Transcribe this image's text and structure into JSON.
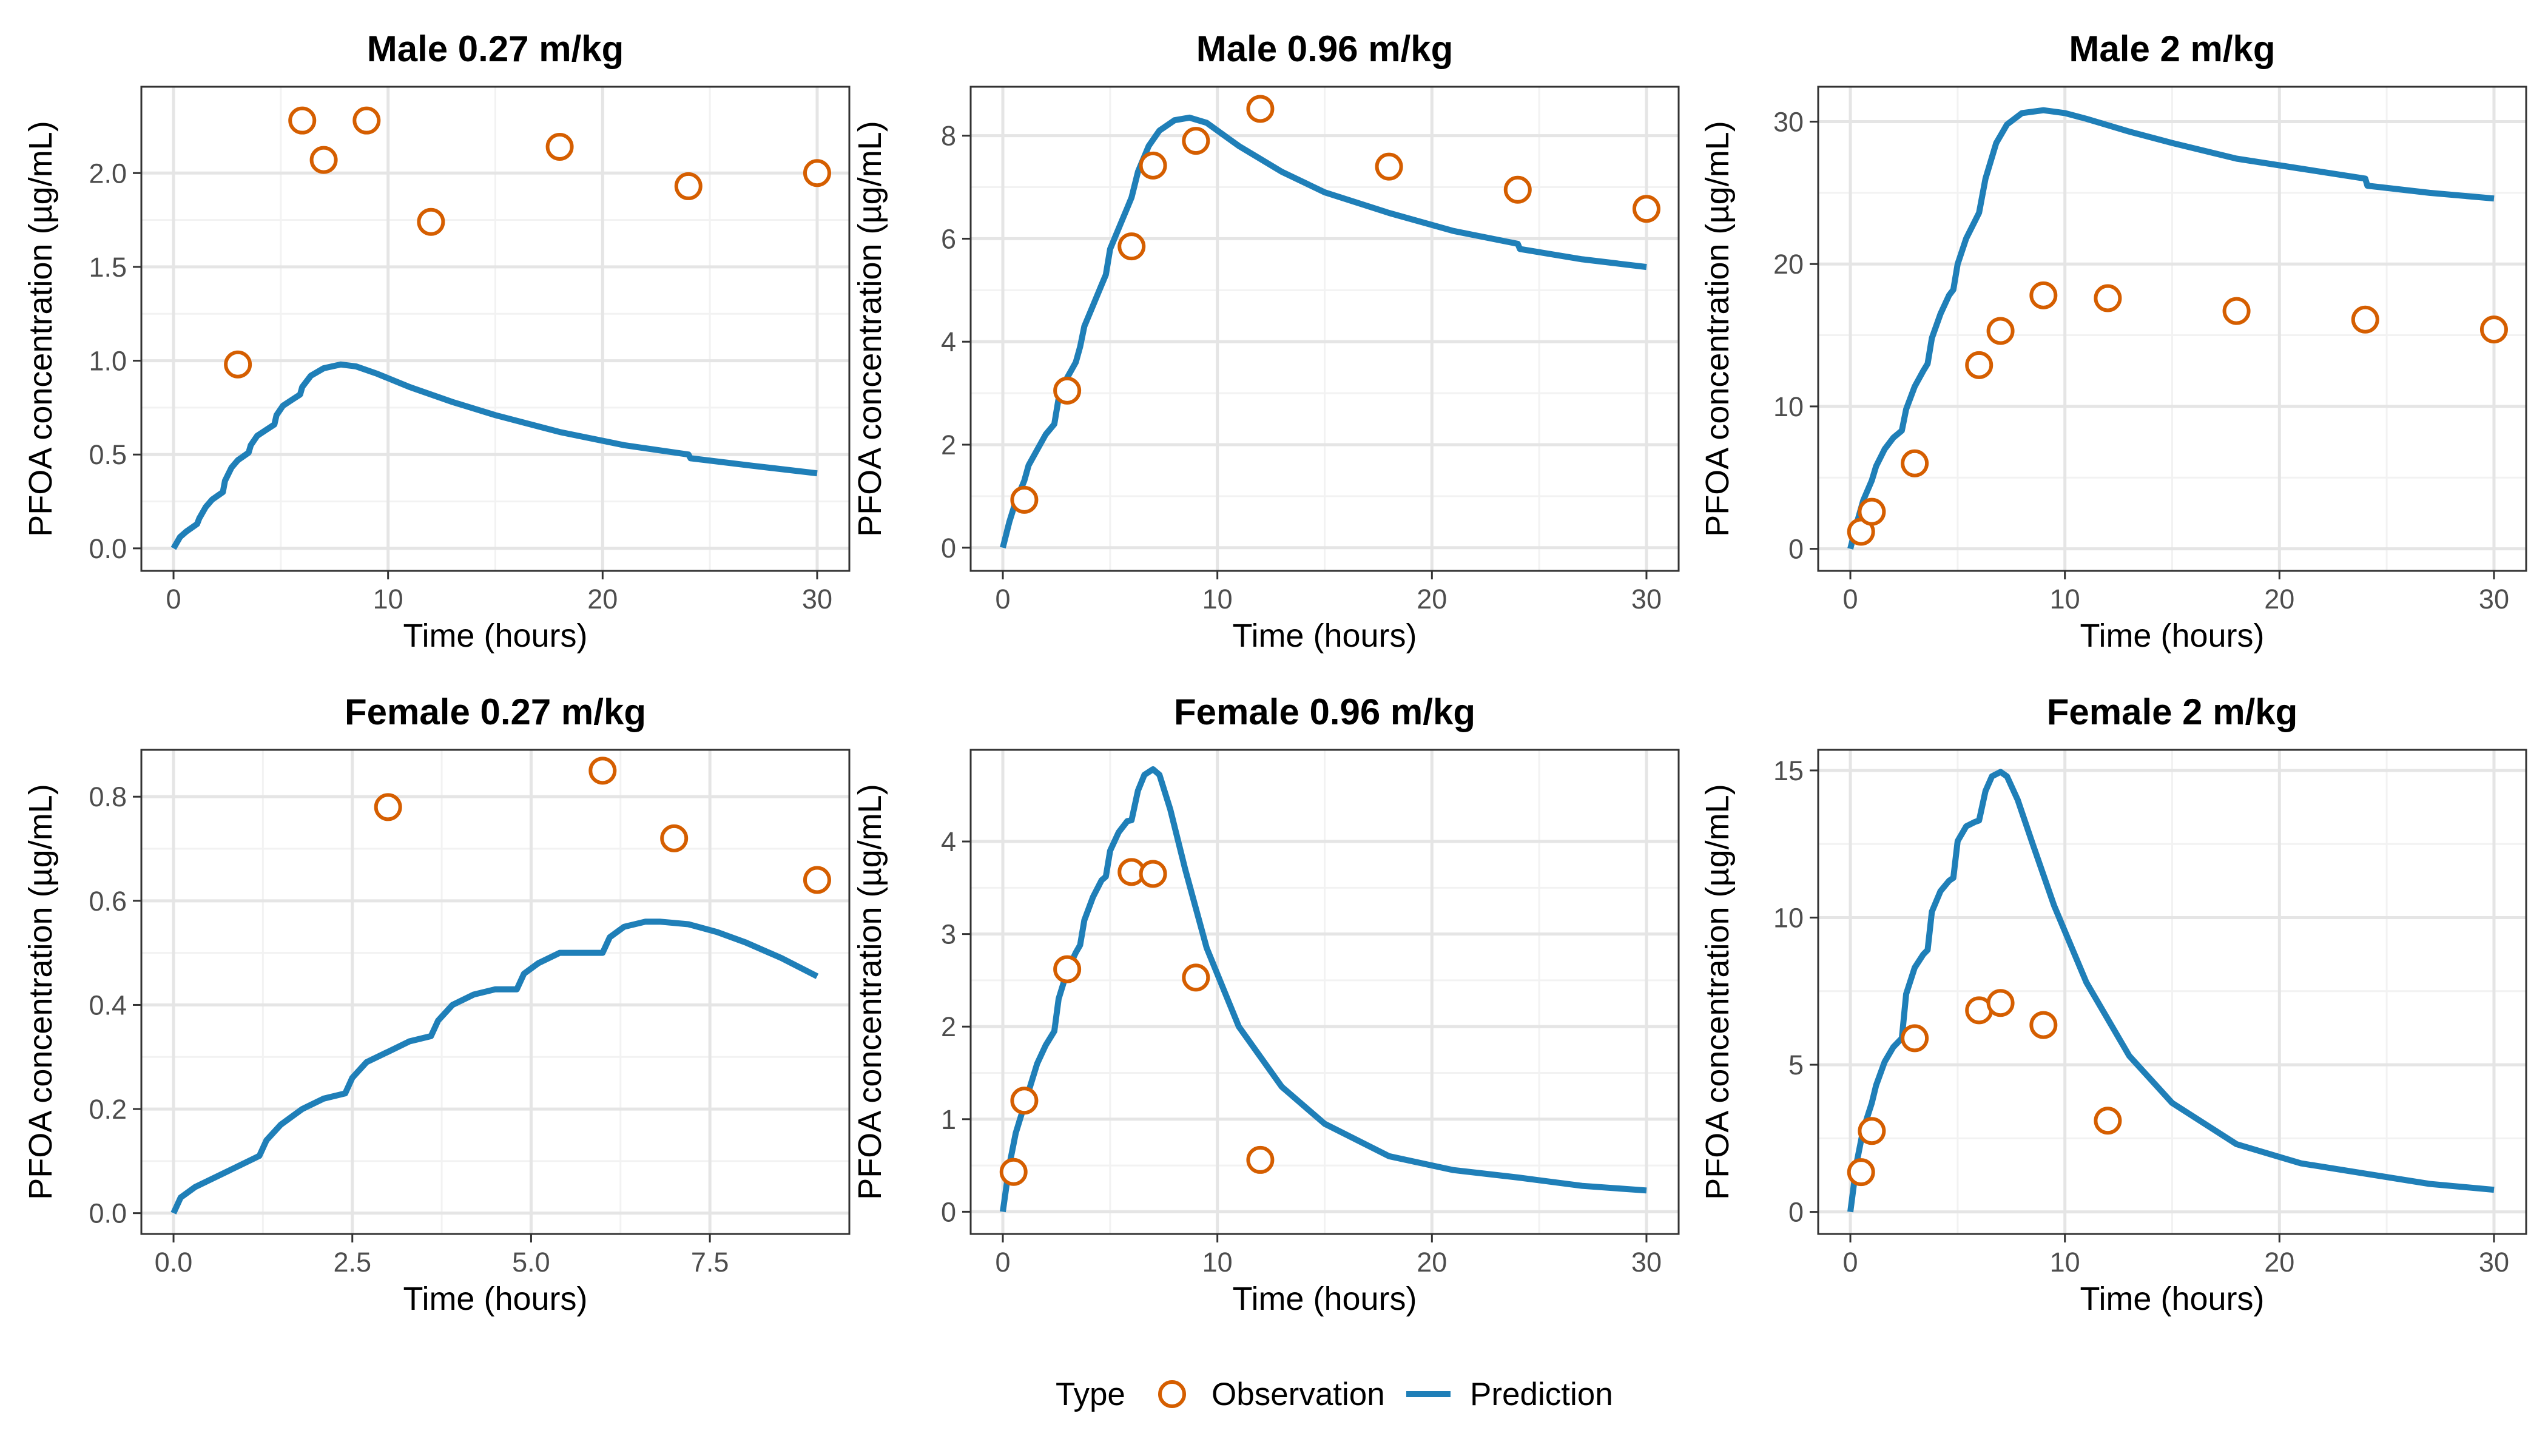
{
  "legend": {
    "title": "Type",
    "observation_label": "Observation",
    "prediction_label": "Prediction"
  },
  "colors": {
    "observation": "#D55E00",
    "prediction": "#1F7FB8",
    "grid": "#E5E5E5",
    "frame": "#333333"
  },
  "chart_data": [
    {
      "type": "line",
      "title": "Male 0.27 m/kg",
      "xlabel": "Time (hours)",
      "ylabel": "PFOA concentration (µg/mL)",
      "xlim": [
        -1.5,
        31.5
      ],
      "ylim": [
        -0.12,
        2.46
      ],
      "xticks": [
        0,
        10,
        20,
        30
      ],
      "xtick_labels": [
        "0",
        "10",
        "20",
        "30"
      ],
      "yticks": [
        0,
        0.5,
        1.0,
        1.5,
        2.0
      ],
      "ytick_labels": [
        "0.0",
        "0.5",
        "1.0",
        "1.5",
        "2.0"
      ],
      "series": [
        {
          "name": "Observation",
          "kind": "points",
          "x": [
            3,
            6,
            7,
            9,
            12,
            18,
            24,
            30
          ],
          "y": [
            0.98,
            2.28,
            2.07,
            2.28,
            1.74,
            2.14,
            1.93,
            2.0
          ]
        },
        {
          "name": "Prediction",
          "kind": "line",
          "x": [
            0,
            0.3,
            0.6,
            1.1,
            1.2,
            1.5,
            1.8,
            2.3,
            2.4,
            2.7,
            3.0,
            3.5,
            3.6,
            3.9,
            4.3,
            4.7,
            4.8,
            5.1,
            5.5,
            5.9,
            6.0,
            6.4,
            7.0,
            7.8,
            8.5,
            9.5,
            11,
            13,
            15,
            18,
            21,
            24,
            24.1,
            27,
            30
          ],
          "y": [
            0,
            0.06,
            0.09,
            0.13,
            0.16,
            0.22,
            0.26,
            0.3,
            0.36,
            0.43,
            0.47,
            0.51,
            0.55,
            0.6,
            0.63,
            0.66,
            0.71,
            0.76,
            0.79,
            0.82,
            0.86,
            0.92,
            0.96,
            0.98,
            0.97,
            0.93,
            0.86,
            0.78,
            0.71,
            0.62,
            0.55,
            0.5,
            0.48,
            0.44,
            0.4
          ]
        }
      ]
    },
    {
      "type": "line",
      "title": "Male 0.96 m/kg",
      "xlabel": "Time (hours)",
      "ylabel": "PFOA concentration (µg/mL)",
      "xlim": [
        -1.5,
        31.5
      ],
      "ylim": [
        -0.45,
        8.95
      ],
      "xticks": [
        0,
        10,
        20,
        30
      ],
      "xtick_labels": [
        "0",
        "10",
        "20",
        "30"
      ],
      "yticks": [
        0,
        2,
        4,
        6,
        8
      ],
      "ytick_labels": [
        "0",
        "2",
        "4",
        "6",
        "8"
      ],
      "series": [
        {
          "name": "Observation",
          "kind": "points",
          "x": [
            1,
            3,
            6,
            7,
            9,
            12,
            18,
            24,
            30
          ],
          "y": [
            0.93,
            3.05,
            5.85,
            7.42,
            7.9,
            8.52,
            7.4,
            6.95,
            6.58
          ]
        },
        {
          "name": "Prediction",
          "kind": "line",
          "x": [
            0,
            0.3,
            0.6,
            1.0,
            1.2,
            1.6,
            2.0,
            2.4,
            2.6,
            3.0,
            3.4,
            3.6,
            3.8,
            4.2,
            4.6,
            4.8,
            5.0,
            5.4,
            5.8,
            6.0,
            6.3,
            6.8,
            7.3,
            8.0,
            8.7,
            9.5,
            11,
            13,
            15,
            18,
            21,
            24,
            24.1,
            27,
            30
          ],
          "y": [
            0,
            0.5,
            0.9,
            1.3,
            1.6,
            1.9,
            2.2,
            2.4,
            2.9,
            3.3,
            3.6,
            3.9,
            4.3,
            4.7,
            5.1,
            5.3,
            5.8,
            6.2,
            6.6,
            6.8,
            7.3,
            7.8,
            8.1,
            8.3,
            8.35,
            8.25,
            7.8,
            7.3,
            6.9,
            6.5,
            6.15,
            5.9,
            5.8,
            5.6,
            5.45
          ]
        }
      ]
    },
    {
      "type": "line",
      "title": "Male 2 m/kg",
      "xlabel": "Time (hours)",
      "ylabel": "PFOA concentration (µg/mL)",
      "xlim": [
        -1.5,
        31.5
      ],
      "ylim": [
        -1.55,
        32.45
      ],
      "xticks": [
        0,
        10,
        20,
        30
      ],
      "xtick_labels": [
        "0",
        "10",
        "20",
        "30"
      ],
      "yticks": [
        0,
        10,
        20,
        30
      ],
      "ytick_labels": [
        "0",
        "10",
        "20",
        "30"
      ],
      "series": [
        {
          "name": "Observation",
          "kind": "points",
          "x": [
            0.5,
            1,
            3,
            6,
            7,
            9,
            12,
            18,
            24,
            30
          ],
          "y": [
            1.2,
            2.6,
            6.0,
            12.9,
            15.3,
            17.8,
            17.6,
            16.7,
            16.1,
            15.4
          ]
        },
        {
          "name": "Prediction",
          "kind": "line",
          "x": [
            0,
            0.3,
            0.6,
            1.0,
            1.2,
            1.6,
            2.0,
            2.4,
            2.6,
            3.0,
            3.4,
            3.6,
            3.8,
            4.2,
            4.6,
            4.8,
            5.0,
            5.4,
            5.8,
            6.0,
            6.3,
            6.8,
            7.3,
            8.0,
            9.0,
            10,
            11,
            13,
            15,
            18,
            21,
            24,
            24.1,
            27,
            30
          ],
          "y": [
            0,
            1.8,
            3.4,
            4.8,
            5.8,
            7.0,
            7.8,
            8.3,
            9.8,
            11.4,
            12.5,
            13.0,
            14.8,
            16.5,
            17.8,
            18.2,
            20.0,
            21.8,
            23.0,
            23.6,
            26.0,
            28.5,
            29.8,
            30.6,
            30.8,
            30.6,
            30.2,
            29.3,
            28.5,
            27.4,
            26.7,
            26.0,
            25.5,
            25.0,
            24.6
          ]
        }
      ]
    },
    {
      "type": "line",
      "title": "Female 0.27 m/kg",
      "xlabel": "Time (hours)",
      "ylabel": "PFOA concentration (µg/mL)",
      "xlim": [
        -0.45,
        9.45
      ],
      "ylim": [
        -0.04,
        0.89
      ],
      "xticks": [
        0,
        2.5,
        5,
        7.5
      ],
      "xtick_labels": [
        "0.0",
        "2.5",
        "5.0",
        "7.5"
      ],
      "yticks": [
        0,
        0.2,
        0.4,
        0.6,
        0.8
      ],
      "ytick_labels": [
        "0.0",
        "0.2",
        "0.4",
        "0.6",
        "0.8"
      ],
      "series": [
        {
          "name": "Observation",
          "kind": "points",
          "x": [
            3,
            6,
            7,
            9
          ],
          "y": [
            0.78,
            0.85,
            0.72,
            0.64
          ]
        },
        {
          "name": "Prediction",
          "kind": "line",
          "x": [
            0,
            0.1,
            0.3,
            0.6,
            0.9,
            1.2,
            1.3,
            1.5,
            1.8,
            2.1,
            2.4,
            2.5,
            2.7,
            3.0,
            3.3,
            3.6,
            3.7,
            3.9,
            4.2,
            4.5,
            4.8,
            4.9,
            5.1,
            5.4,
            5.7,
            6.0,
            6.1,
            6.3,
            6.6,
            6.8,
            7.2,
            7.6,
            8.0,
            8.5,
            9.0
          ],
          "y": [
            0,
            0.03,
            0.05,
            0.07,
            0.09,
            0.11,
            0.14,
            0.17,
            0.2,
            0.22,
            0.23,
            0.26,
            0.29,
            0.31,
            0.33,
            0.34,
            0.37,
            0.4,
            0.42,
            0.43,
            0.43,
            0.46,
            0.48,
            0.5,
            0.5,
            0.5,
            0.53,
            0.55,
            0.56,
            0.56,
            0.555,
            0.54,
            0.52,
            0.49,
            0.455
          ]
        }
      ]
    },
    {
      "type": "line",
      "title": "Female 0.96 m/kg",
      "xlabel": "Time (hours)",
      "ylabel": "PFOA concentration (µg/mL)",
      "xlim": [
        -1.5,
        31.5
      ],
      "ylim": [
        -0.24,
        4.99
      ],
      "xticks": [
        0,
        10,
        20,
        30
      ],
      "xtick_labels": [
        "0",
        "10",
        "20",
        "30"
      ],
      "yticks": [
        0,
        1,
        2,
        3,
        4
      ],
      "ytick_labels": [
        "0",
        "1",
        "2",
        "3",
        "4"
      ],
      "series": [
        {
          "name": "Observation",
          "kind": "points",
          "x": [
            0.5,
            1,
            3,
            6,
            7,
            9,
            12
          ],
          "y": [
            0.43,
            1.2,
            2.62,
            3.67,
            3.65,
            2.53,
            0.56
          ]
        },
        {
          "name": "Prediction",
          "kind": "line",
          "x": [
            0,
            0.3,
            0.6,
            1.0,
            1.2,
            1.6,
            2.0,
            2.4,
            2.6,
            3.0,
            3.4,
            3.6,
            3.8,
            4.2,
            4.6,
            4.8,
            5.0,
            5.4,
            5.8,
            6.0,
            6.3,
            6.6,
            7.0,
            7.3,
            7.8,
            8.5,
            9.5,
            11,
            13,
            15,
            18,
            21,
            24,
            27,
            30
          ],
          "y": [
            0,
            0.5,
            0.85,
            1.15,
            1.3,
            1.6,
            1.8,
            1.95,
            2.3,
            2.6,
            2.8,
            2.88,
            3.15,
            3.4,
            3.58,
            3.62,
            3.9,
            4.1,
            4.22,
            4.23,
            4.55,
            4.72,
            4.78,
            4.72,
            4.35,
            3.7,
            2.85,
            2.0,
            1.35,
            0.95,
            0.6,
            0.45,
            0.37,
            0.28,
            0.23
          ]
        }
      ]
    },
    {
      "type": "line",
      "title": "Female 2 m/kg",
      "xlabel": "Time (hours)",
      "ylabel": "PFOA concentration (µg/mL)",
      "xlim": [
        -1.5,
        31.5
      ],
      "ylim": [
        -0.75,
        15.7
      ],
      "xticks": [
        0,
        10,
        20,
        30
      ],
      "xtick_labels": [
        "0",
        "10",
        "20",
        "30"
      ],
      "yticks": [
        0,
        5,
        10,
        15
      ],
      "ytick_labels": [
        "0",
        "5",
        "10",
        "15"
      ],
      "series": [
        {
          "name": "Observation",
          "kind": "points",
          "x": [
            0.5,
            1,
            3,
            6,
            7,
            9,
            12
          ],
          "y": [
            1.35,
            2.75,
            5.9,
            6.85,
            7.1,
            6.35,
            3.1
          ]
        },
        {
          "name": "Prediction",
          "kind": "line",
          "x": [
            0,
            0.3,
            0.6,
            1.0,
            1.2,
            1.6,
            2.0,
            2.4,
            2.6,
            3.0,
            3.4,
            3.6,
            3.8,
            4.2,
            4.6,
            4.8,
            5.0,
            5.4,
            5.8,
            6.0,
            6.3,
            6.6,
            7.0,
            7.3,
            7.8,
            8.5,
            9.5,
            11,
            13,
            15,
            18,
            21,
            24,
            27,
            30
          ],
          "y": [
            0,
            1.7,
            2.8,
            3.7,
            4.3,
            5.1,
            5.6,
            5.9,
            7.4,
            8.3,
            8.75,
            8.9,
            10.2,
            10.9,
            11.25,
            11.35,
            12.6,
            13.1,
            13.25,
            13.3,
            14.3,
            14.8,
            14.95,
            14.8,
            14.0,
            12.5,
            10.4,
            7.8,
            5.3,
            3.7,
            2.3,
            1.65,
            1.3,
            0.95,
            0.75
          ]
        }
      ]
    }
  ]
}
